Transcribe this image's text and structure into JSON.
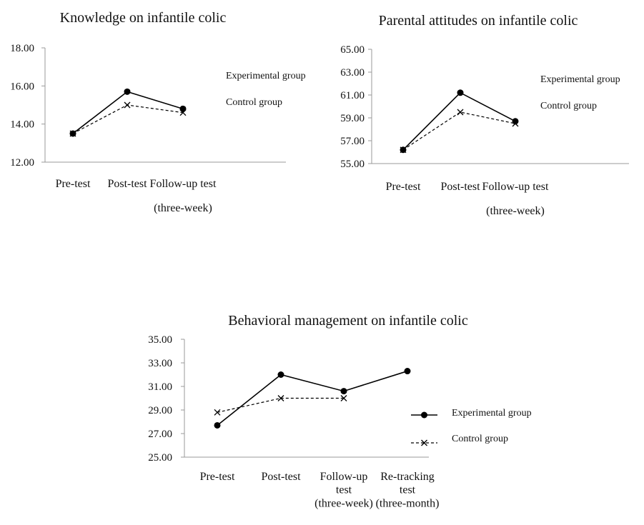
{
  "chart_data": [
    {
      "type": "line",
      "title": "Knowledge on infantile colic",
      "categories": [
        "Pre-test",
        "Post-test",
        "Follow-up test|(three-week)"
      ],
      "yticks": [
        "18.00",
        "16.00",
        "14.00",
        "12.00"
      ],
      "ylim": [
        12,
        18
      ],
      "series": [
        {
          "name": "Experimental group",
          "marker": "circle",
          "style": "solid",
          "values": [
            13.5,
            15.7,
            14.8
          ]
        },
        {
          "name": "Control group",
          "marker": "cross",
          "style": "dashed",
          "values": [
            13.5,
            15.0,
            14.6
          ]
        }
      ],
      "legend": "right"
    },
    {
      "type": "line",
      "title": "Parental attitudes on infantile colic",
      "categories": [
        "Pre-test",
        "Post-test",
        "Follow-up test|(three-week)"
      ],
      "yticks": [
        "65.00",
        "63.00",
        "61.00",
        "59.00",
        "57.00",
        "55.00"
      ],
      "ylim": [
        55,
        65
      ],
      "series": [
        {
          "name": "Experimental group",
          "marker": "circle",
          "style": "solid",
          "values": [
            56.2,
            61.2,
            58.7
          ]
        },
        {
          "name": "Control group",
          "marker": "cross",
          "style": "dashed",
          "values": [
            56.2,
            59.5,
            58.5
          ]
        }
      ],
      "legend": "right"
    },
    {
      "type": "line",
      "title": "Behavioral management on infantile colic",
      "categories": [
        "Pre-test",
        "Post-test",
        "Follow-up|test|(three-week)",
        "Re-tracking|test|(three-month)"
      ],
      "yticks": [
        "35.00",
        "33.00",
        "31.00",
        "29.00",
        "27.00",
        "25.00"
      ],
      "ylim": [
        25,
        35
      ],
      "series": [
        {
          "name": "Experimental group",
          "marker": "circle",
          "style": "solid",
          "values": [
            27.7,
            32.0,
            30.6,
            32.3
          ]
        },
        {
          "name": "Control group",
          "marker": "cross",
          "style": "dashed",
          "values": [
            28.8,
            30.0,
            30.0,
            null
          ]
        }
      ],
      "legend": "right"
    }
  ]
}
